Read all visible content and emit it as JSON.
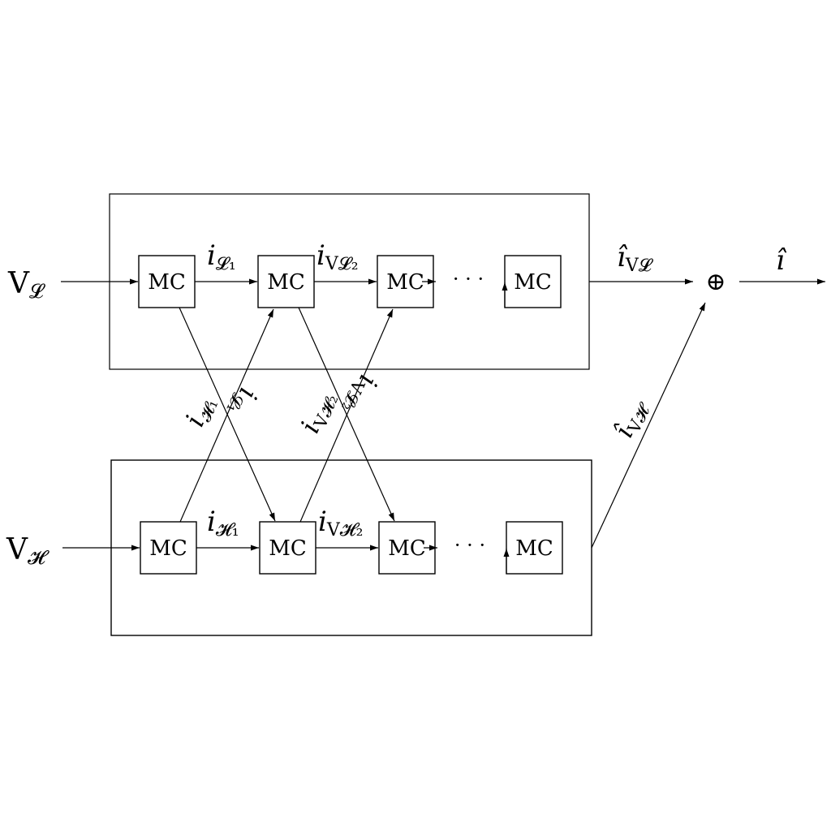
{
  "inputs": {
    "low_base": "V",
    "low_sub": "𝓛",
    "high_base": "V",
    "high_sub": "𝓗"
  },
  "block_label": "MC",
  "ellipsis": "· · ·",
  "sum_symbol": "⊕",
  "signals": {
    "iL1": {
      "main": "i",
      "sub": "𝓛₁"
    },
    "iVL2": {
      "main": "i",
      "sub": "V𝓛₂"
    },
    "iH1": {
      "main": "i",
      "sub": "𝓗₁"
    },
    "iVH2": {
      "main": "i",
      "sub": "V𝓗₂"
    },
    "hatIVL": {
      "main": "î",
      "sub": "V𝓛"
    },
    "hatIVH": {
      "main": "î",
      "sub": "V𝓗"
    },
    "hatI": {
      "main": "î",
      "sub": ""
    }
  }
}
